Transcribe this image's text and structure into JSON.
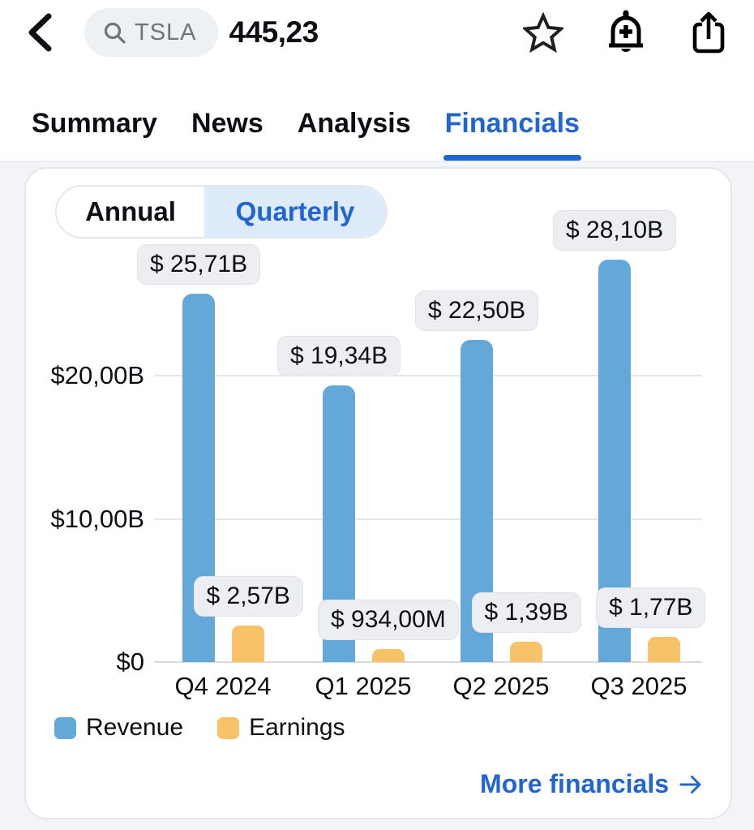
{
  "header": {
    "back_icon": "chevron-left",
    "search_icon": "magnifier",
    "ticker": "TSLA",
    "price": "445,23",
    "action_icons": [
      "star",
      "bell-plus",
      "share"
    ]
  },
  "tabs": [
    {
      "label": "Summary",
      "active": false
    },
    {
      "label": "News",
      "active": false
    },
    {
      "label": "Analysis",
      "active": false
    },
    {
      "label": "Financials",
      "active": true
    }
  ],
  "card": {
    "toggle": {
      "annual": "Annual",
      "quarterly": "Quarterly",
      "selected": "Quarterly"
    },
    "more_label": "More financials",
    "more_arrow_icon": "arrow-right"
  },
  "colors": {
    "accent_blue": "#2165d3",
    "revenue_bar": "#64a8da",
    "earnings_bar": "#f7c268",
    "quarterly_segment_bg": "#ddebfb",
    "badge_bg": "#eceef2",
    "page_bg": "#f2f4f7"
  },
  "chart_data": {
    "type": "bar",
    "title": "TSLA quarterly financials",
    "categories": [
      "Q4 2024",
      "Q1 2025",
      "Q2 2025",
      "Q3 2025"
    ],
    "series": [
      {
        "name": "Revenue",
        "color": "#64a8da",
        "values": [
          25.71,
          19.34,
          22.5,
          28.1
        ],
        "labels": [
          "$ 25,71B",
          "$ 19,34B",
          "$ 22,50B",
          "$ 28,10B"
        ]
      },
      {
        "name": "Earnings",
        "color": "#f7c268",
        "values": [
          2.57,
          0.934,
          1.39,
          1.77
        ],
        "labels": [
          "$ 2,57B",
          "$ 934,00M",
          "$ 1,39B",
          "$ 1,77B"
        ]
      }
    ],
    "unit": "billions USD",
    "y_ticks": [
      {
        "value": 0,
        "label": "$0"
      },
      {
        "value": 10,
        "label": "$10,00B"
      },
      {
        "value": 20,
        "label": "$20,00B"
      }
    ],
    "ylim": [
      0,
      30
    ],
    "grid": true,
    "legend_position": "bottom"
  }
}
